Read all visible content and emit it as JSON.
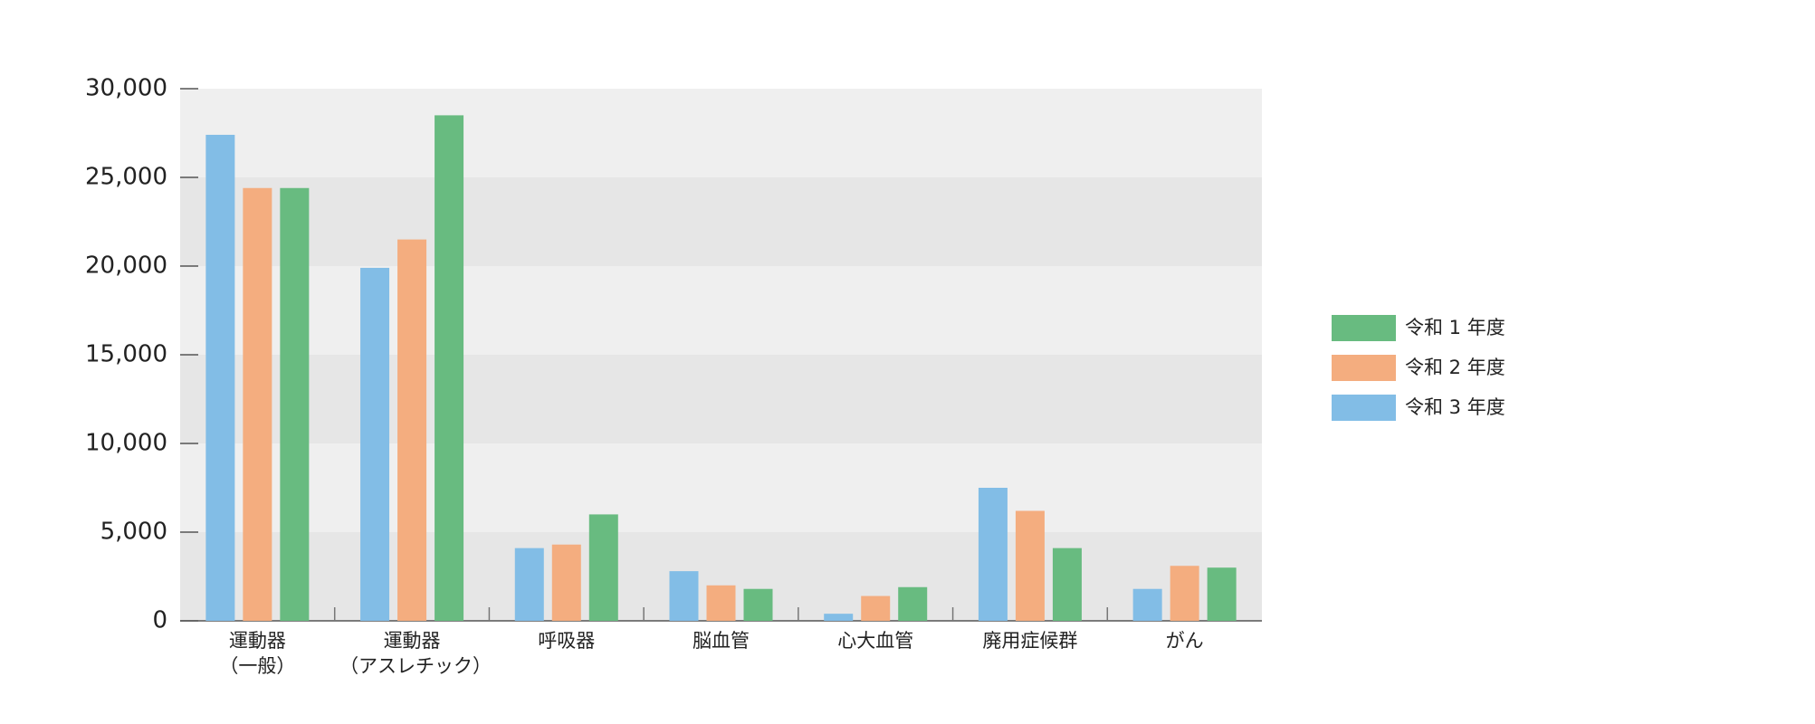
{
  "chart_data": {
    "type": "bar",
    "categories": [
      "運動器\n（一般）",
      "運動器\n（アスレチック）",
      "呼吸器",
      "脳血管",
      "心大血管",
      "廃用症候群",
      "がん"
    ],
    "series": [
      {
        "name": "令和 1 年度",
        "color": "#68bb80",
        "values": [
          24400,
          28500,
          6000,
          1800,
          1900,
          4100,
          3000
        ]
      },
      {
        "name": "令和 2 年度",
        "color": "#f4ad7f",
        "values": [
          24400,
          21500,
          4300,
          2000,
          1400,
          6200,
          3100
        ]
      },
      {
        "name": "令和 3 年度",
        "color": "#82bde6",
        "values": [
          27400,
          19900,
          4100,
          2800,
          400,
          7500,
          1800
        ]
      }
    ],
    "ylim": [
      0,
      30000
    ],
    "yticks": [
      0,
      {
        "value": 5000,
        "label": "5,000"
      },
      {
        "value": 10000,
        "label": "10,000"
      },
      {
        "value": 15000,
        "label": "15,000"
      },
      {
        "value": 20000,
        "label": "20,000"
      },
      {
        "value": 25000,
        "label": "25,000"
      },
      {
        "value": 30000,
        "label": "30,000"
      }
    ],
    "grid": true
  }
}
